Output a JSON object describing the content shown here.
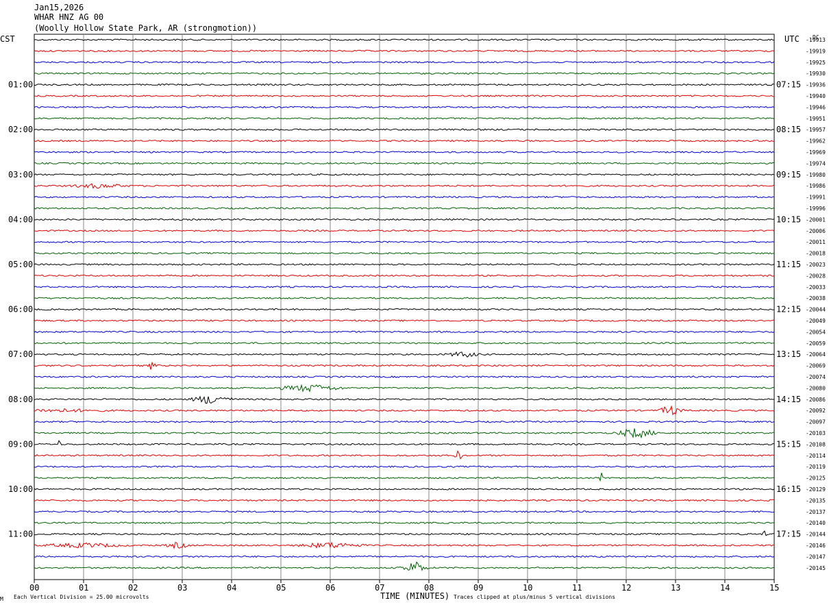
{
  "header": {
    "date": "Jan15,2026",
    "channel": "WHAR HNZ AG 00",
    "location": "(Woolly Hollow State Park, AR (strongmotion))"
  },
  "left_timezone": "CST",
  "right_timezone": "UTC",
  "dc_label": "DC",
  "footer": {
    "scale_note": "Each Vertical Division =   25.00 microvolts",
    "xlabel": "TIME (MINUTES)",
    "clip_note": "Traces clipped at plus/minus 5 vertical divisions",
    "corner_mark": "M"
  },
  "colors": {
    "trace_cycle": [
      "#000000",
      "#e00000",
      "#0000d0",
      "#006000"
    ],
    "grid": "#888888"
  },
  "chart_data": {
    "type": "line",
    "title": "WHAR HNZ AG 00",
    "xlabel": "TIME (MINUTES)",
    "xlim": [
      0,
      15
    ],
    "x_ticks": [
      "00",
      "01",
      "02",
      "03",
      "04",
      "05",
      "06",
      "07",
      "08",
      "09",
      "10",
      "11",
      "12",
      "13",
      "14",
      "15"
    ],
    "rows": 48,
    "left_hour_labels": [
      {
        "row": 4,
        "text": "01:00"
      },
      {
        "row": 8,
        "text": "02:00"
      },
      {
        "row": 12,
        "text": "03:00"
      },
      {
        "row": 16,
        "text": "04:00"
      },
      {
        "row": 20,
        "text": "05:00"
      },
      {
        "row": 24,
        "text": "06:00"
      },
      {
        "row": 28,
        "text": "07:00"
      },
      {
        "row": 32,
        "text": "08:00"
      },
      {
        "row": 36,
        "text": "09:00"
      },
      {
        "row": 40,
        "text": "10:00"
      },
      {
        "row": 44,
        "text": "11:00"
      }
    ],
    "right_hour_labels": [
      {
        "row": 4,
        "text": "07:15"
      },
      {
        "row": 8,
        "text": "08:15"
      },
      {
        "row": 12,
        "text": "09:15"
      },
      {
        "row": 16,
        "text": "10:15"
      },
      {
        "row": 20,
        "text": "11:15"
      },
      {
        "row": 24,
        "text": "12:15"
      },
      {
        "row": 28,
        "text": "13:15"
      },
      {
        "row": 32,
        "text": "14:15"
      },
      {
        "row": 36,
        "text": "15:15"
      },
      {
        "row": 40,
        "text": "16:15"
      },
      {
        "row": 44,
        "text": "17:15"
      }
    ],
    "dc_offsets": [
      "-19913",
      "-19919",
      "-19925",
      "-19930",
      "-19936",
      "-19940",
      "-19946",
      "-19951",
      "-19957",
      "-19962",
      "-19969",
      "-19974",
      "-19980",
      "-19986",
      "-19991",
      "-19996",
      "-20001",
      "-20006",
      "-20011",
      "-20018",
      "-20023",
      "-20028",
      "-20033",
      "-20038",
      "-20044",
      "-20049",
      "-20054",
      "-20059",
      "-20064",
      "-20069",
      "-20074",
      "-20080",
      "-20086",
      "-20092",
      "-20097",
      "-20103",
      "-20108",
      "-20114",
      "-20119",
      "-20125",
      "-20129",
      "-20135",
      "-20137",
      "-20140",
      "-20144",
      "-20146",
      "-20147",
      "-20145"
    ],
    "events": [
      {
        "row": 13,
        "minute": 1.3,
        "width": 0.7,
        "amp": 3
      },
      {
        "row": 28,
        "minute": 8.7,
        "width": 0.4,
        "amp": 4
      },
      {
        "row": 29,
        "minute": 2.4,
        "width": 0.1,
        "amp": 9
      },
      {
        "row": 31,
        "minute": 5.6,
        "width": 0.8,
        "amp": 5
      },
      {
        "row": 32,
        "minute": 3.6,
        "width": 0.5,
        "amp": 7
      },
      {
        "row": 33,
        "minute": 0.5,
        "width": 1.2,
        "amp": 2
      },
      {
        "row": 33,
        "minute": 12.9,
        "width": 0.3,
        "amp": 7
      },
      {
        "row": 35,
        "minute": 12.2,
        "width": 0.5,
        "amp": 7
      },
      {
        "row": 36,
        "minute": 0.5,
        "width": 0.05,
        "amp": 6
      },
      {
        "row": 37,
        "minute": 8.6,
        "width": 0.1,
        "amp": 7
      },
      {
        "row": 39,
        "minute": 11.5,
        "width": 0.05,
        "amp": 8
      },
      {
        "row": 45,
        "minute": 1.0,
        "width": 1.0,
        "amp": 3
      },
      {
        "row": 45,
        "minute": 2.9,
        "width": 0.3,
        "amp": 4
      },
      {
        "row": 45,
        "minute": 6.0,
        "width": 0.8,
        "amp": 4
      },
      {
        "row": 44,
        "minute": 14.8,
        "width": 0.05,
        "amp": 7
      },
      {
        "row": 47,
        "minute": 7.7,
        "width": 0.3,
        "amp": 10
      }
    ]
  }
}
